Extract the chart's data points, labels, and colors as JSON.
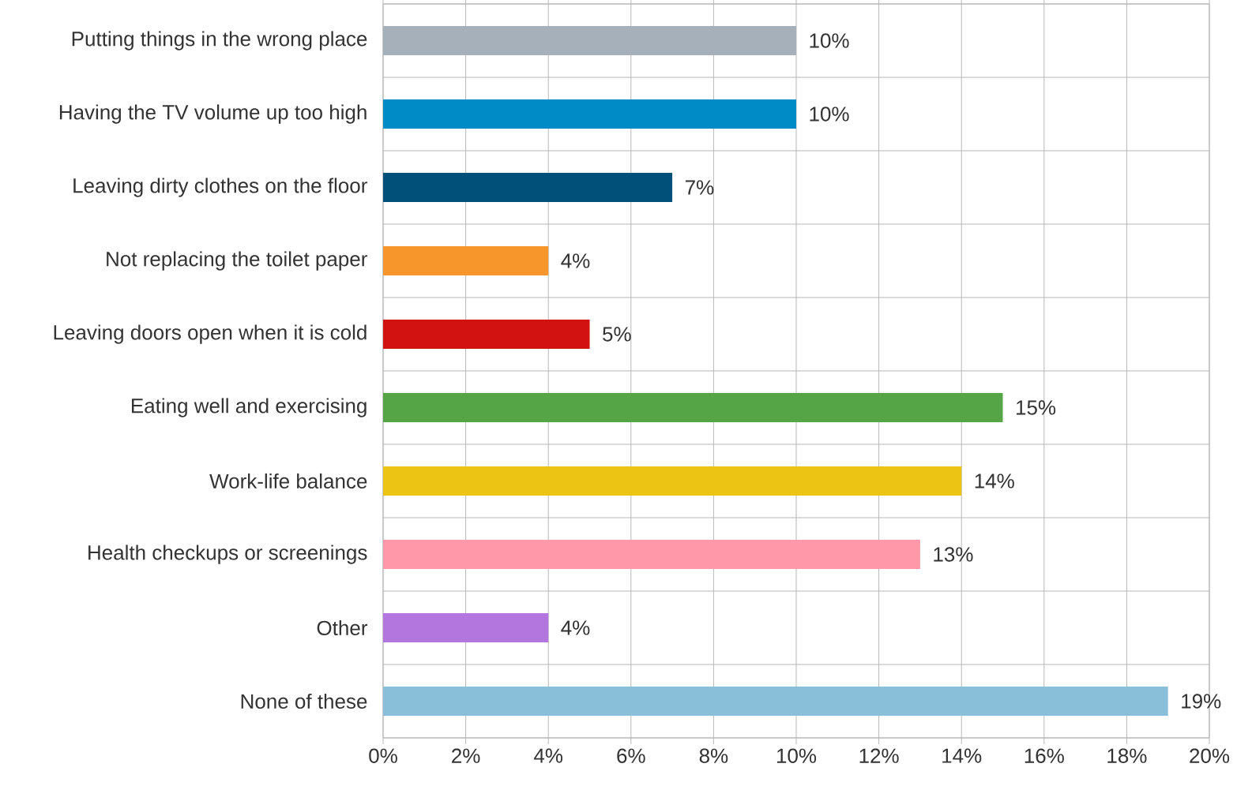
{
  "chart_data": {
    "type": "bar",
    "orientation": "horizontal",
    "categories": [
      "Putting things in the wrong place",
      "Having the TV volume up too high",
      "Leaving dirty clothes on the floor",
      "Not replacing the toilet paper",
      "Leaving doors open when it is cold",
      "Eating well and exercising",
      "Work-life balance",
      "Health checkups or screenings",
      "Other",
      "None of these"
    ],
    "values": [
      10,
      10,
      7,
      4,
      5,
      15,
      14,
      13,
      4,
      19
    ],
    "value_labels": [
      "10%",
      "10%",
      "7%",
      "4%",
      "5%",
      "15%",
      "14%",
      "13%",
      "4%",
      "19%"
    ],
    "colors": [
      "#a5b0ba",
      "#008bc7",
      "#00507a",
      "#f7962a",
      "#d21111",
      "#55a546",
      "#ebc414",
      "#ff99aa",
      "#b276de",
      "#8abfda"
    ],
    "xlim": [
      0,
      20
    ],
    "xticks": [
      {
        "value": 0,
        "label": "0%"
      },
      {
        "value": 2,
        "label": "2%"
      },
      {
        "value": 4,
        "label": "4%"
      },
      {
        "value": 6,
        "label": "6%"
      },
      {
        "value": 8,
        "label": "8%"
      },
      {
        "value": 10,
        "label": "10%"
      },
      {
        "value": 12,
        "label": "12%"
      },
      {
        "value": 14,
        "label": "14%"
      },
      {
        "value": 16,
        "label": "16%"
      },
      {
        "value": 18,
        "label": "18%"
      },
      {
        "value": 20,
        "label": "20%"
      }
    ],
    "grid": true
  }
}
